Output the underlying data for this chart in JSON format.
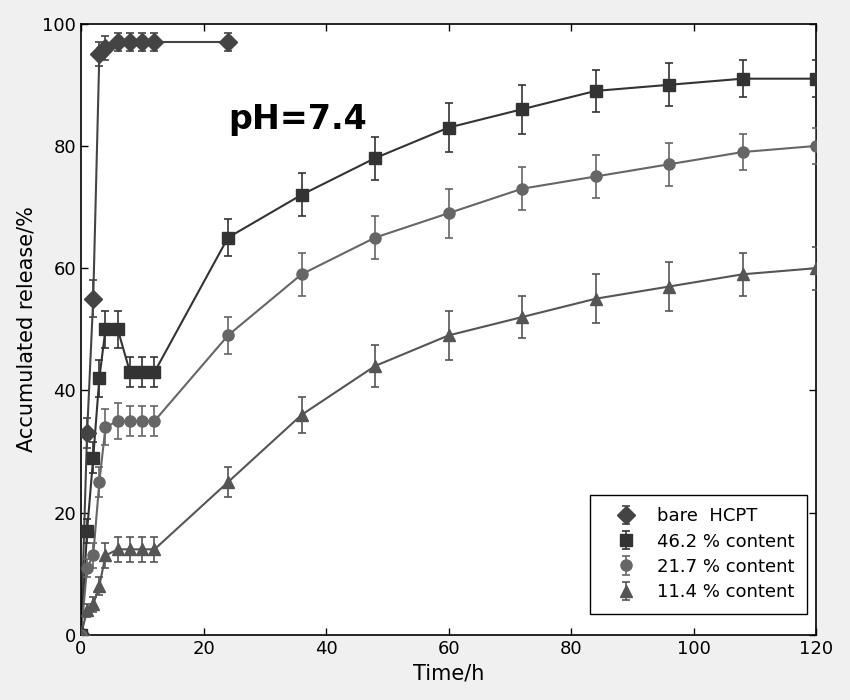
{
  "title_annotation": "pH=7.4",
  "xlabel": "Time/h",
  "ylabel": "Accumulated release/%",
  "xlim": [
    0,
    120
  ],
  "ylim": [
    0,
    100
  ],
  "xticks": [
    0,
    20,
    40,
    60,
    80,
    100,
    120
  ],
  "yticks": [
    0,
    20,
    40,
    60,
    80,
    100
  ],
  "background_color": "#f0f0f0",
  "series": [
    {
      "label": "bare  HCPT",
      "marker": "D",
      "color": "#444444",
      "x": [
        0,
        1,
        2,
        3,
        4,
        6,
        8,
        10,
        12,
        24
      ],
      "y": [
        0,
        33,
        55,
        95,
        96,
        97,
        97,
        97,
        97,
        97
      ],
      "yerr": [
        0,
        2.5,
        3.0,
        2.0,
        2.0,
        1.5,
        1.5,
        1.5,
        1.5,
        1.5
      ],
      "markersize": 9,
      "linewidth": 1.5,
      "smooth": false
    },
    {
      "label": "46.2 % content",
      "marker": "s",
      "color": "#333333",
      "x": [
        0,
        1,
        2,
        3,
        4,
        6,
        8,
        10,
        12,
        24,
        36,
        48,
        60,
        72,
        84,
        96,
        108,
        120
      ],
      "y": [
        0,
        17,
        29,
        42,
        50,
        50,
        43,
        43,
        43,
        65,
        72,
        78,
        83,
        86,
        89,
        90,
        91,
        91
      ],
      "yerr": [
        0,
        2.0,
        2.5,
        3.0,
        3.0,
        3.0,
        2.5,
        2.5,
        2.5,
        3.0,
        3.5,
        3.5,
        4.0,
        4.0,
        3.5,
        3.5,
        3.0,
        3.0
      ],
      "markersize": 8,
      "linewidth": 1.5,
      "smooth": false
    },
    {
      "label": "21.7 % content",
      "marker": "o",
      "color": "#666666",
      "x": [
        0,
        1,
        2,
        3,
        4,
        6,
        8,
        10,
        12,
        24,
        36,
        48,
        60,
        72,
        84,
        96,
        108,
        120
      ],
      "y": [
        0,
        11,
        13,
        25,
        34,
        35,
        35,
        35,
        35,
        49,
        59,
        65,
        69,
        73,
        75,
        77,
        79,
        80
      ],
      "yerr": [
        0,
        1.5,
        2.0,
        2.5,
        3.0,
        3.0,
        2.5,
        2.5,
        2.5,
        3.0,
        3.5,
        3.5,
        4.0,
        3.5,
        3.5,
        3.5,
        3.0,
        3.0
      ],
      "markersize": 8,
      "linewidth": 1.5,
      "smooth": false
    },
    {
      "label": "11.4 % content",
      "marker": "^",
      "color": "#555555",
      "x": [
        0,
        1,
        2,
        3,
        4,
        6,
        8,
        10,
        12,
        24,
        36,
        48,
        60,
        72,
        84,
        96,
        108,
        120
      ],
      "y": [
        0,
        4,
        5,
        8,
        13,
        14,
        14,
        14,
        14,
        25,
        36,
        44,
        49,
        52,
        55,
        57,
        59,
        60
      ],
      "yerr": [
        0,
        1.0,
        1.2,
        1.5,
        2.0,
        2.0,
        2.0,
        2.0,
        2.0,
        2.5,
        3.0,
        3.5,
        4.0,
        3.5,
        4.0,
        4.0,
        3.5,
        3.5
      ],
      "markersize": 8,
      "linewidth": 1.5,
      "smooth": false
    }
  ],
  "annotation_fontsize": 24,
  "label_fontsize": 15,
  "tick_fontsize": 13,
  "legend_fontsize": 13
}
